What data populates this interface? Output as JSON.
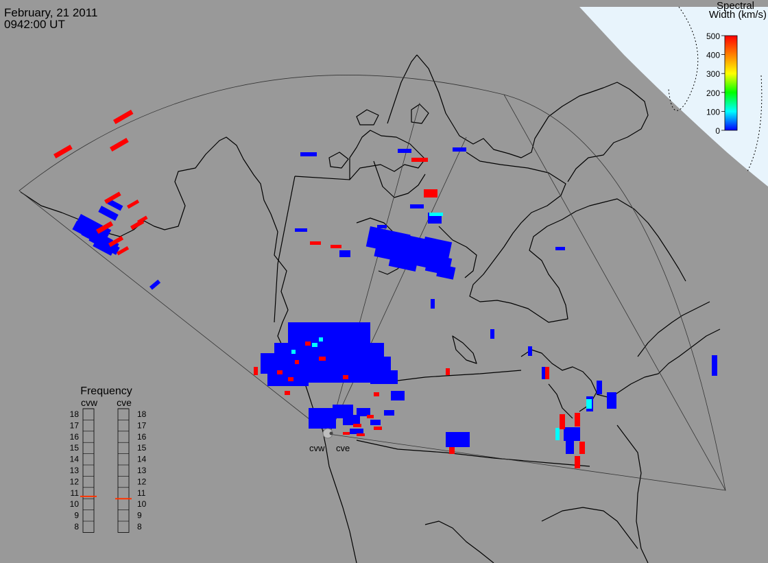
{
  "header": {
    "date": "February, 21 2011",
    "time": "0942:00 UT"
  },
  "colorbar": {
    "title_line1": "Spectral",
    "title_line2": "Width (km/s)",
    "ticks": [
      "500",
      "400",
      "300",
      "200",
      "100",
      "0"
    ],
    "colors": [
      "#0000ff",
      "#00ffff",
      "#00ff00",
      "#ffff00",
      "#ff7f00",
      "#ff0000"
    ]
  },
  "frequency_panel": {
    "title": "Frequency",
    "radars": [
      {
        "name": "cvw",
        "frequency_mhz": 10.7,
        "indicator_color": "#ff3300"
      },
      {
        "name": "cve",
        "frequency_mhz": 10.5,
        "indicator_color": "#ff3300"
      }
    ],
    "scale": [
      "18",
      "17",
      "16",
      "15",
      "14",
      "13",
      "12",
      "11",
      "10",
      "9",
      "8"
    ]
  },
  "radar_labels": {
    "west": "cvw",
    "east": "cve"
  },
  "colors": {
    "background": "#999999",
    "land_outline": "#000000",
    "night_side": "#e8f4fc",
    "low_width": "#0000ff",
    "high_width": "#ff0000",
    "mid_width": "#00ffff"
  }
}
